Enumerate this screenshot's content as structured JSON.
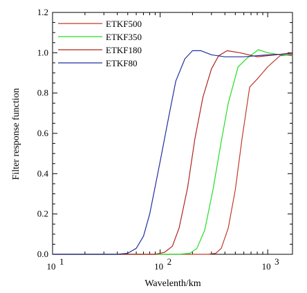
{
  "chart_data": {
    "type": "line",
    "title": "",
    "xlabel": "Wavelenth/km",
    "ylabel": "Filter response function",
    "xscale": "log",
    "xlim": [
      10,
      1700
    ],
    "ylim": [
      0,
      1.2
    ],
    "x_ticks": [
      {
        "value": 10,
        "base": "10",
        "exp": "1"
      },
      {
        "value": 100,
        "base": "10",
        "exp": "2"
      },
      {
        "value": 1000,
        "base": "10",
        "exp": "3"
      }
    ],
    "y_ticks": [
      "0.0",
      "0.2",
      "0.4",
      "0.6",
      "0.8",
      "1.0",
      "1.2"
    ],
    "grid": false,
    "legend_position": "top-left",
    "series": [
      {
        "name": "ETKF500",
        "color": "#c0392b",
        "x": [
          10,
          200,
          280,
          330,
          370,
          430,
          500,
          580,
          680,
          800,
          1000,
          1300,
          1700
        ],
        "y": [
          0,
          0,
          0,
          0.005,
          0.03,
          0.13,
          0.32,
          0.58,
          0.83,
          0.87,
          0.93,
          0.985,
          0.99
        ]
      },
      {
        "name": "ETKF350",
        "color": "#22dd22",
        "x": [
          10,
          150,
          190,
          220,
          260,
          310,
          370,
          430,
          530,
          650,
          820,
          1000,
          1300,
          1700
        ],
        "y": [
          0,
          0,
          0.005,
          0.03,
          0.12,
          0.32,
          0.56,
          0.75,
          0.93,
          0.975,
          1.015,
          1.0,
          0.99,
          0.985
        ]
      },
      {
        "name": "ETKF180",
        "color": "#b22222",
        "x": [
          10,
          90,
          110,
          130,
          150,
          180,
          210,
          250,
          300,
          350,
          420,
          550,
          800,
          1200,
          1700
        ],
        "y": [
          0,
          0,
          0.01,
          0.04,
          0.13,
          0.33,
          0.57,
          0.78,
          0.92,
          0.985,
          1.01,
          1.0,
          0.98,
          0.99,
          1.0
        ]
      },
      {
        "name": "ETKF80",
        "color": "#1f2f9f",
        "x": [
          10,
          40,
          50,
          60,
          70,
          80,
          100,
          120,
          140,
          170,
          200,
          240,
          300,
          400,
          600,
          1000,
          1700
        ],
        "y": [
          0,
          0,
          0.005,
          0.03,
          0.09,
          0.2,
          0.46,
          0.68,
          0.86,
          0.97,
          1.01,
          1.01,
          0.99,
          0.98,
          0.98,
          0.99,
          0.995
        ]
      }
    ]
  }
}
